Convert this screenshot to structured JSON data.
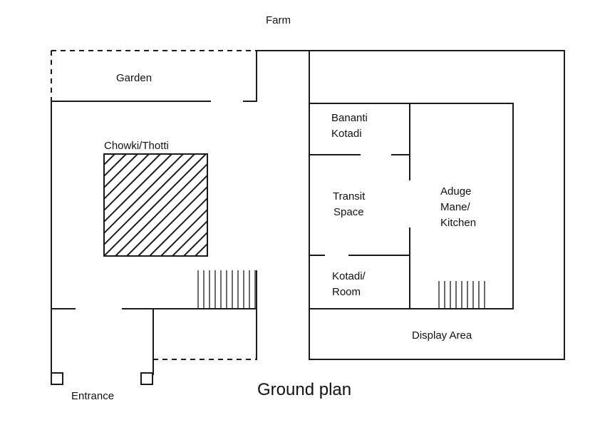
{
  "labels": {
    "farm": "Farm",
    "garden": "Garden",
    "chowki": "Chowki/Thotti",
    "bananti_1": "Bananti",
    "bananti_2": "Kotadi",
    "transit_1": "Transit",
    "transit_2": "Space",
    "kotadi_1": "Kotadi/",
    "kotadi_2": "Room",
    "aduge_1": "Aduge",
    "aduge_2": "Mane/",
    "aduge_3": "Kitchen",
    "display": "Display Area",
    "entrance": "Entrance",
    "title": "Ground plan"
  }
}
